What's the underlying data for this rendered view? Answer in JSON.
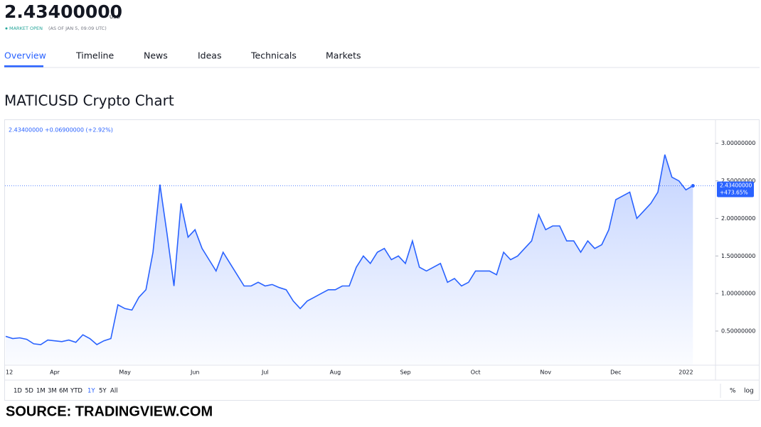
{
  "header": {
    "price": "2.43400000",
    "currency": "USD",
    "status": "MARKET OPEN",
    "as_of": "(AS OF JAN 5, 09:09 UTC)"
  },
  "tabs": [
    "Overview",
    "Timeline",
    "News",
    "Ideas",
    "Technicals",
    "Markets"
  ],
  "section_title": "MATICUSD Crypto Chart",
  "chart_data": {
    "type": "area",
    "legend": "2.43400000 +0.06900000 (+2.92%)",
    "color": "#2962ff",
    "last_label": "2.43400000",
    "last_change": "+473.65%",
    "categories": [
      "12",
      null,
      null,
      null,
      null,
      null,
      null,
      "Apr",
      null,
      null,
      null,
      null,
      null,
      null,
      null,
      null,
      null,
      "May",
      null,
      null,
      null,
      null,
      null,
      null,
      null,
      null,
      null,
      "Jun",
      null,
      null,
      null,
      null,
      null,
      null,
      null,
      null,
      null,
      "Jul",
      null,
      null,
      null,
      null,
      null,
      null,
      null,
      null,
      null,
      "Aug",
      null,
      null,
      null,
      null,
      null,
      null,
      null,
      null,
      null,
      "Sep",
      null,
      null,
      null,
      null,
      null,
      null,
      null,
      null,
      null,
      "Oct",
      null,
      null,
      null,
      null,
      null,
      null,
      null,
      null,
      null,
      "Nov",
      null,
      null,
      null,
      null,
      null,
      null,
      null,
      null,
      null,
      "Dec",
      null,
      null,
      null,
      null,
      null,
      null,
      null,
      null,
      null,
      "2022",
      null
    ],
    "values": [
      0.43,
      0.4,
      0.41,
      0.39,
      0.33,
      0.32,
      0.38,
      0.37,
      0.36,
      0.38,
      0.35,
      0.45,
      0.4,
      0.32,
      0.37,
      0.4,
      0.85,
      0.8,
      0.78,
      0.95,
      1.05,
      1.55,
      2.45,
      1.8,
      1.1,
      2.2,
      1.75,
      1.85,
      1.6,
      1.45,
      1.3,
      1.55,
      1.4,
      1.25,
      1.1,
      1.1,
      1.15,
      1.1,
      1.12,
      1.08,
      1.05,
      0.9,
      0.8,
      0.9,
      0.95,
      1.0,
      1.05,
      1.05,
      1.1,
      1.1,
      1.35,
      1.5,
      1.4,
      1.55,
      1.6,
      1.45,
      1.5,
      1.4,
      1.7,
      1.35,
      1.3,
      1.35,
      1.4,
      1.15,
      1.2,
      1.1,
      1.15,
      1.3,
      1.3,
      1.3,
      1.25,
      1.55,
      1.45,
      1.5,
      1.6,
      1.7,
      2.05,
      1.85,
      1.9,
      1.9,
      1.7,
      1.7,
      1.55,
      1.7,
      1.6,
      1.65,
      1.85,
      2.25,
      2.3,
      2.35,
      2.0,
      2.1,
      2.2,
      2.35,
      2.85,
      2.55,
      2.5,
      2.38,
      2.434
    ],
    "ylim": [
      0.055,
      3.3
    ],
    "yticks": [
      {
        "value": 0.5,
        "label": "0.50000000"
      },
      {
        "value": 1.0,
        "label": "1.00000000"
      },
      {
        "value": 1.5,
        "label": "1.50000000"
      },
      {
        "value": 2.0,
        "label": "2.00000000"
      },
      {
        "value": 2.5,
        "label": "2.50000000"
      },
      {
        "value": 3.0,
        "label": "3.00000000"
      }
    ]
  },
  "ranges": [
    "1D",
    "5D",
    "1M",
    "3M",
    "6M",
    "YTD",
    "1Y",
    "5Y",
    "All"
  ],
  "scale_buttons": [
    "%",
    "log"
  ],
  "source": "SOURCE: TRADINGVIEW.COM"
}
